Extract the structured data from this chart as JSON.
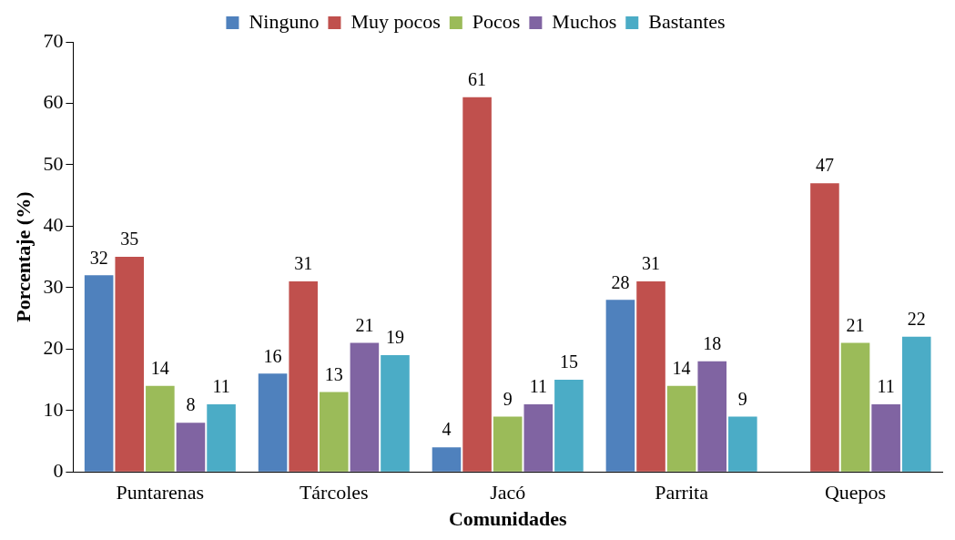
{
  "chart_data": {
    "type": "bar",
    "xlabel": "Comunidades",
    "ylabel": "Porcentaje (%)",
    "categories": [
      "Puntarenas",
      "Tárcoles",
      "Jacó",
      "Parrita",
      "Quepos"
    ],
    "series": [
      {
        "name": "Ninguno",
        "color": "#4f81bd",
        "values": [
          32,
          16,
          4,
          28,
          null
        ]
      },
      {
        "name": "Muy pocos",
        "color": "#c0504d",
        "values": [
          35,
          31,
          61,
          31,
          47
        ]
      },
      {
        "name": "Pocos",
        "color": "#9bbb59",
        "values": [
          14,
          13,
          9,
          14,
          21
        ]
      },
      {
        "name": "Muchos",
        "color": "#8064a2",
        "values": [
          8,
          21,
          11,
          18,
          11
        ]
      },
      {
        "name": "Bastantes",
        "color": "#4bacc6",
        "values": [
          11,
          19,
          15,
          9,
          22
        ]
      }
    ],
    "ylim": [
      0,
      70
    ],
    "yticks": [
      0,
      10,
      20,
      30,
      40,
      50,
      60,
      70
    ],
    "grid": false,
    "legend": "top",
    "data_labels": true
  }
}
